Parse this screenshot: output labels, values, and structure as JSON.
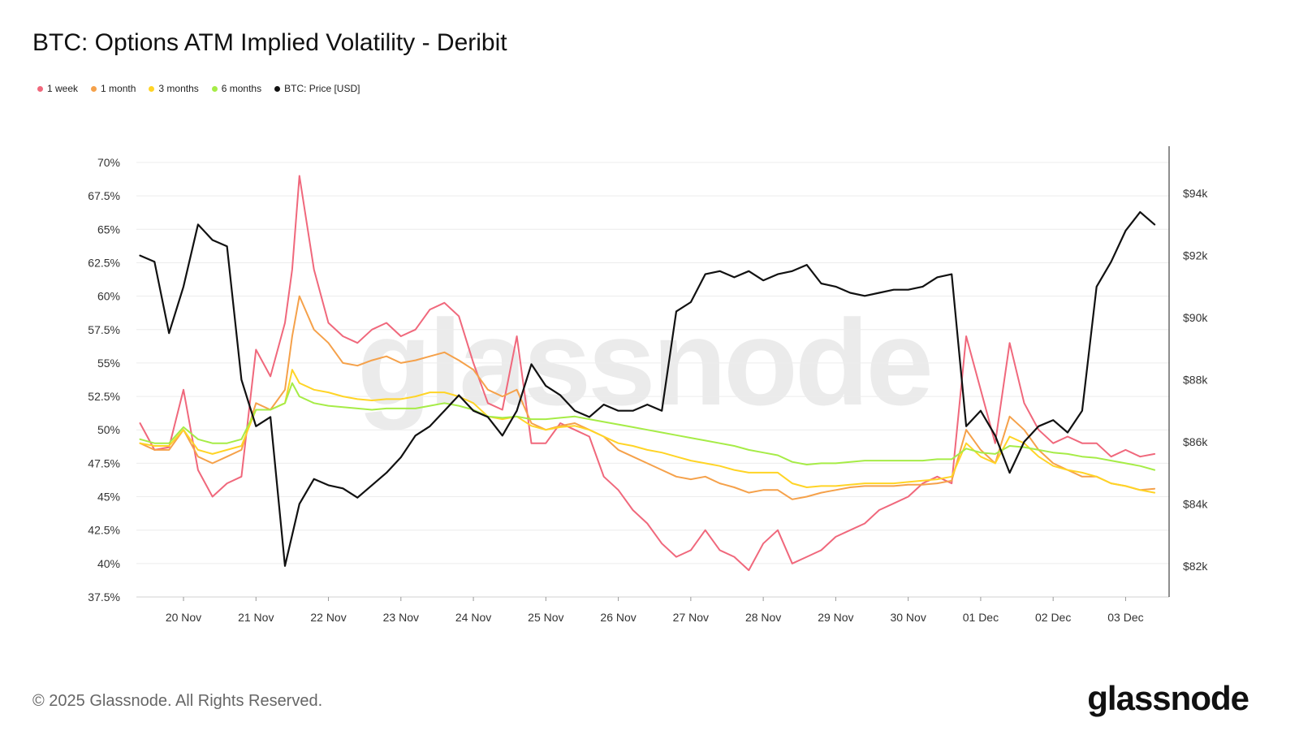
{
  "title": "BTC: Options ATM Implied Volatility - Deribit",
  "footer": {
    "copyright": "© 2025 Glassnode. All Rights Reserved.",
    "logo": "glassnode"
  },
  "watermark": "glassnode",
  "chart_data": {
    "type": "line",
    "title": "BTC: Options ATM Implied Volatility - Deribit",
    "legend_position": "top-left",
    "grid": true,
    "x_ticks": [
      "20 Nov",
      "21 Nov",
      "22 Nov",
      "23 Nov",
      "24 Nov",
      "25 Nov",
      "26 Nov",
      "27 Nov",
      "28 Nov",
      "29 Nov",
      "30 Nov",
      "01 Dec",
      "02 Dec",
      "03 Dec"
    ],
    "xlim": [
      19.35,
      33.6
    ],
    "y_left": {
      "ticks": [
        "70%",
        "67.5%",
        "65%",
        "62.5%",
        "60%",
        "57.5%",
        "55%",
        "52.5%",
        "50%",
        "47.5%",
        "45%",
        "42.5%",
        "40%",
        "37.5%"
      ],
      "range": [
        37.5,
        70
      ]
    },
    "y_right": {
      "ticks": [
        "$94k",
        "$92k",
        "$90k",
        "$88k",
        "$86k",
        "$84k",
        "$82k"
      ],
      "range": [
        81,
        95
      ]
    },
    "x": [
      19.4,
      19.6,
      19.8,
      20.0,
      20.2,
      20.4,
      20.6,
      20.8,
      21.0,
      21.2,
      21.4,
      21.5,
      21.6,
      21.8,
      22.0,
      22.2,
      22.4,
      22.6,
      22.8,
      23.0,
      23.2,
      23.4,
      23.6,
      23.8,
      24.0,
      24.2,
      24.4,
      24.6,
      24.8,
      25.0,
      25.2,
      25.4,
      25.6,
      25.8,
      26.0,
      26.2,
      26.4,
      26.6,
      26.8,
      27.0,
      27.2,
      27.4,
      27.6,
      27.8,
      28.0,
      28.2,
      28.4,
      28.6,
      28.8,
      29.0,
      29.2,
      29.4,
      29.6,
      29.8,
      30.0,
      30.2,
      30.4,
      30.6,
      30.8,
      31.0,
      31.2,
      31.4,
      31.6,
      31.8,
      32.0,
      32.2,
      32.4,
      32.6,
      32.8,
      33.0,
      33.2,
      33.4
    ],
    "series": [
      {
        "name": "1 week",
        "color": "#f0687c",
        "axis": "left",
        "values": [
          50.5,
          48.5,
          48.7,
          53.0,
          47.0,
          45.0,
          46.0,
          46.5,
          56.0,
          54.0,
          58.0,
          62.0,
          69.0,
          62.0,
          58.0,
          57.0,
          56.5,
          57.5,
          58.0,
          57.0,
          57.5,
          59.0,
          59.5,
          58.5,
          55.0,
          52.0,
          51.5,
          57.0,
          49.0,
          49.0,
          50.5,
          50.0,
          49.5,
          46.5,
          45.5,
          44.0,
          43.0,
          41.5,
          40.5,
          41.0,
          42.5,
          41.0,
          40.5,
          39.5,
          41.5,
          42.5,
          40.0,
          40.5,
          41.0,
          42.0,
          42.5,
          43.0,
          44.0,
          44.5,
          45.0,
          46.0,
          46.5,
          46.0,
          57.0,
          53.0,
          49.0,
          56.5,
          52.0,
          50.0,
          49.0,
          49.5,
          49.0,
          49.0,
          48.0,
          48.5,
          48.0,
          48.2
        ]
      },
      {
        "name": "1 month",
        "color": "#f5a14a",
        "axis": "left",
        "values": [
          49.0,
          48.5,
          48.5,
          50.0,
          48.0,
          47.5,
          48.0,
          48.5,
          52.0,
          51.5,
          53.0,
          57.0,
          60.0,
          57.5,
          56.5,
          55.0,
          54.8,
          55.2,
          55.5,
          55.0,
          55.2,
          55.5,
          55.8,
          55.2,
          54.5,
          53.0,
          52.5,
          53.0,
          50.5,
          50.0,
          50.3,
          50.5,
          50.0,
          49.5,
          48.5,
          48.0,
          47.5,
          47.0,
          46.5,
          46.3,
          46.5,
          46.0,
          45.7,
          45.3,
          45.5,
          45.5,
          44.8,
          45.0,
          45.3,
          45.5,
          45.7,
          45.8,
          45.8,
          45.8,
          45.9,
          45.9,
          46.0,
          46.2,
          50.0,
          48.5,
          47.5,
          51.0,
          50.0,
          48.5,
          47.5,
          47.0,
          46.5,
          46.5,
          46.0,
          45.8,
          45.5,
          45.6
        ]
      },
      {
        "name": "3 months",
        "color": "#ffd426",
        "axis": "left",
        "values": [
          49.0,
          48.8,
          48.8,
          50.0,
          48.5,
          48.2,
          48.5,
          48.8,
          51.5,
          51.5,
          52.0,
          54.5,
          53.5,
          53.0,
          52.8,
          52.5,
          52.3,
          52.2,
          52.3,
          52.3,
          52.5,
          52.8,
          52.8,
          52.5,
          52.0,
          51.0,
          50.8,
          51.0,
          50.3,
          50.0,
          50.2,
          50.3,
          50.0,
          49.5,
          49.0,
          48.8,
          48.5,
          48.3,
          48.0,
          47.7,
          47.5,
          47.3,
          47.0,
          46.8,
          46.8,
          46.8,
          46.0,
          45.7,
          45.8,
          45.8,
          45.9,
          46.0,
          46.0,
          46.0,
          46.1,
          46.2,
          46.3,
          46.5,
          49.0,
          48.0,
          47.5,
          49.5,
          49.0,
          48.0,
          47.3,
          47.0,
          46.8,
          46.5,
          46.0,
          45.8,
          45.5,
          45.3
        ]
      },
      {
        "name": "6 months",
        "color": "#a6ec47",
        "axis": "left",
        "values": [
          49.3,
          49.0,
          49.0,
          50.2,
          49.3,
          49.0,
          49.0,
          49.3,
          51.5,
          51.5,
          52.0,
          53.5,
          52.5,
          52.0,
          51.8,
          51.7,
          51.6,
          51.5,
          51.6,
          51.6,
          51.6,
          51.8,
          52.0,
          51.8,
          51.5,
          51.0,
          50.9,
          51.0,
          50.8,
          50.8,
          50.9,
          51.0,
          50.8,
          50.6,
          50.4,
          50.2,
          50.0,
          49.8,
          49.6,
          49.4,
          49.2,
          49.0,
          48.8,
          48.5,
          48.3,
          48.1,
          47.6,
          47.4,
          47.5,
          47.5,
          47.6,
          47.7,
          47.7,
          47.7,
          47.7,
          47.7,
          47.8,
          47.8,
          48.6,
          48.3,
          48.2,
          48.8,
          48.7,
          48.5,
          48.3,
          48.2,
          48.0,
          47.9,
          47.7,
          47.5,
          47.3,
          47.0
        ]
      },
      {
        "name": "BTC: Price [USD]",
        "color": "#111111",
        "axis": "right",
        "values": [
          92.0,
          91.8,
          89.5,
          91.0,
          93.0,
          92.5,
          92.3,
          88.0,
          86.5,
          86.8,
          82.0,
          83.0,
          84.0,
          84.8,
          84.6,
          84.5,
          84.2,
          84.6,
          85.0,
          85.5,
          86.2,
          86.5,
          87.0,
          87.5,
          87.0,
          86.8,
          86.2,
          87.0,
          88.5,
          87.8,
          87.5,
          87.0,
          86.8,
          87.2,
          87.0,
          87.0,
          87.2,
          87.0,
          90.2,
          90.5,
          91.4,
          91.5,
          91.3,
          91.5,
          91.2,
          91.4,
          91.5,
          91.7,
          91.1,
          91.0,
          90.8,
          90.7,
          90.8,
          90.9,
          90.9,
          91.0,
          91.3,
          91.4,
          86.5,
          87.0,
          86.2,
          85.0,
          86.0,
          86.5,
          86.7,
          86.3,
          87.0,
          91.0,
          91.8,
          92.8,
          93.4,
          93.0
        ]
      }
    ]
  }
}
